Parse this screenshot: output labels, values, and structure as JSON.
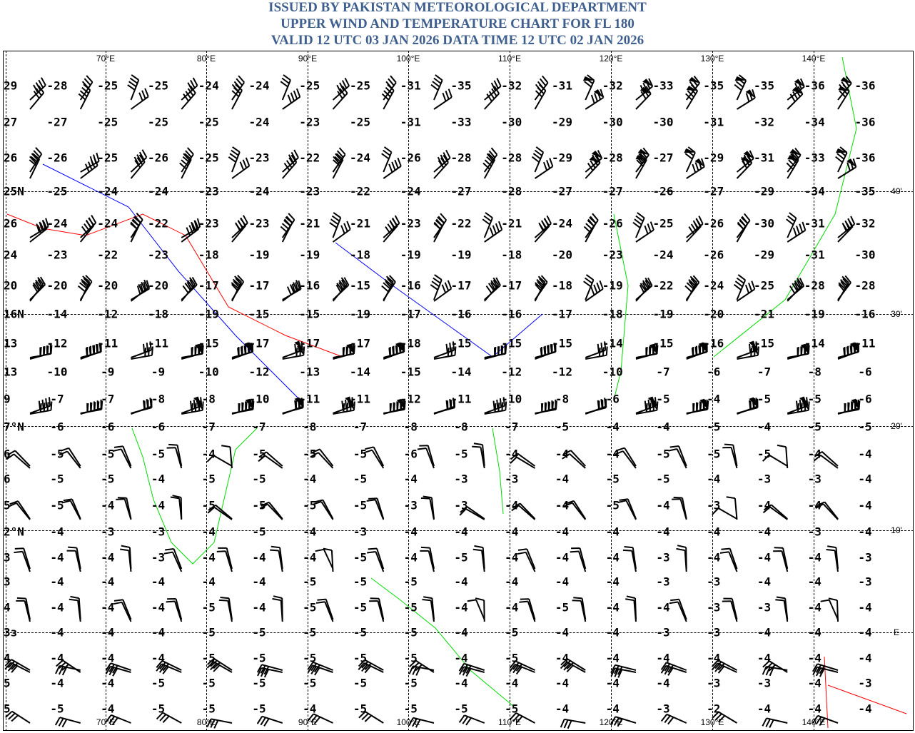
{
  "header": {
    "lines": [
      "ISSUED BY PAKISTAN METEOROLOGICAL DEPARTMENT",
      "UPPER WIND AND TEMPERATURE CHART FOR FL 180",
      "VALID 12 UTC 03 JAN 2026 DATA TIME 12 UTC 02 JAN 2026"
    ],
    "color": "#3f5f8f"
  },
  "map": {
    "longitude_labels": [
      "70°E",
      "80°E",
      "90°E",
      "100°E",
      "110°E",
      "120°E",
      "130°E",
      "140°E"
    ],
    "right_labels": [
      "40'",
      "30'",
      "20'",
      "10'",
      "E"
    ],
    "colors": {
      "coast": "#00dd00",
      "isotherm_red": "#ff0000",
      "isotherm_blue": "#0000ff",
      "barb": "#000000"
    },
    "temperature_rows": [
      [
        "29",
        "-28",
        "-25",
        "-25",
        "-24",
        "-24",
        "-25",
        "-25",
        "-31",
        "-35",
        "-32",
        "-31",
        "-32",
        "-33",
        "-35",
        "-35",
        "-36",
        "-36"
      ],
      [
        "27",
        "-27",
        "-25",
        "-25",
        "-25",
        "-24",
        "-23",
        "-25",
        "-31",
        "-33",
        "-30",
        "-29",
        "-30",
        "-30",
        "-31",
        "-32",
        "-34",
        "-36"
      ],
      [
        "26",
        "-26",
        "-25",
        "-26",
        "-25",
        "-23",
        "-22",
        "-24",
        "-26",
        "-28",
        "-28",
        "-29",
        "-28",
        "-27",
        "-29",
        "-31",
        "-33",
        "-36"
      ],
      [
        "25N",
        "-25",
        "-24",
        "-24",
        "-23",
        "-24",
        "-23",
        "-22",
        "-24",
        "-27",
        "-28",
        "-27",
        "-27",
        "-26",
        "-27",
        "-29",
        "-34",
        "-35"
      ],
      [
        "26",
        "-24",
        "-24",
        "-22",
        "-23",
        "-23",
        "-21",
        "-21",
        "-23",
        "-22",
        "-21",
        "-24",
        "-26",
        "-25",
        "-26",
        "-30",
        "-31",
        "-32"
      ],
      [
        "24",
        "-23",
        "-22",
        "-23",
        "-18",
        "-19",
        "-19",
        "-18",
        "-19",
        "-19",
        "-18",
        "-20",
        "-23",
        "-24",
        "-26",
        "-29",
        "-31",
        "-30"
      ],
      [
        "20",
        "-20",
        "-20",
        "-20",
        "-17",
        "-17",
        "-16",
        "-15",
        "-16",
        "-17",
        "-17",
        "-18",
        "-19",
        "-22",
        "-24",
        "-25",
        "-28",
        "-28"
      ],
      [
        "16N",
        "-14",
        "-12",
        "-18",
        "-19",
        "-15",
        "-15",
        "-19",
        "-17",
        "-16",
        "-16",
        "-17",
        "-18",
        "-19",
        "-20",
        "-21",
        "-19",
        "-16"
      ],
      [
        "13",
        "-12",
        "-11",
        "-11",
        "-15",
        "-17",
        "-17",
        "-17",
        "-18",
        "-15",
        "-15",
        "-15",
        "-14",
        "-15",
        "-16",
        "-15",
        "-14",
        "-11"
      ],
      [
        "13",
        "-10",
        "-9",
        "-9",
        "-10",
        "-12",
        "-13",
        "-14",
        "-15",
        "-14",
        "-12",
        "-12",
        "-10",
        "-7",
        "-6",
        "-7",
        "-8",
        "-6"
      ],
      [
        "9",
        "-7",
        "-7",
        "-8",
        "-8",
        "-10",
        "-11",
        "-11",
        "-12",
        "-11",
        "-10",
        "-8",
        "-6",
        "-5",
        "-4",
        "-5",
        "-5",
        "-6"
      ],
      [
        "7°N",
        "-6",
        "-6",
        "-6",
        "-7",
        "-7",
        "-8",
        "-7",
        "-8",
        "-8",
        "-7",
        "-5",
        "-4",
        "-4",
        "-5",
        "-4",
        "-5",
        "-5"
      ],
      [
        "6",
        "-5",
        "-5",
        "-5",
        "-4",
        "-5",
        "-5",
        "-5",
        "-6",
        "-5",
        "-4",
        "-4",
        "-4",
        "-5",
        "-5",
        "-5",
        "-4",
        "-4"
      ],
      [
        "6",
        "-5",
        "-5",
        "-4",
        "-5",
        "-5",
        "-4",
        "-5",
        "-4",
        "-3",
        "-3",
        "-4",
        "-5",
        "-5",
        "-4",
        "-3",
        "-3",
        "-4"
      ],
      [
        "5",
        "-5",
        "-4",
        "-4",
        "-5",
        "-5",
        "-5",
        "-5",
        "-3",
        "-3",
        "-4",
        "-4",
        "-5",
        "-4",
        "-3",
        "-4",
        "-4",
        "-4"
      ],
      [
        "2°N",
        "-4",
        "-3",
        "-3",
        "-4",
        "-5",
        "-4",
        "-3",
        "-4",
        "-4",
        "-4",
        "-4",
        "-4",
        "-4",
        "-4",
        "-4",
        "-3",
        "-4"
      ],
      [
        "3",
        "-4",
        "-4",
        "-3",
        "-4",
        "-4",
        "-4",
        "-5",
        "-4",
        "-5",
        "-4",
        "-4",
        "-4",
        "-3",
        "-4",
        "-4",
        "-4",
        "-3"
      ],
      [
        "3",
        "-4",
        "-4",
        "-4",
        "-4",
        "-4",
        "-5",
        "-5",
        "-5",
        "-4",
        "-4",
        "-4",
        "-4",
        "-3",
        "-3",
        "-4",
        "-4",
        "-3"
      ],
      [
        "4",
        "-4",
        "-4",
        "-4",
        "-5",
        "-4",
        "-5",
        "-5",
        "-5",
        "-4",
        "-4",
        "-5",
        "-4",
        "-4",
        "-3",
        "-3",
        "-4",
        "-4"
      ],
      [
        "3з",
        "-4",
        "-4",
        "-4",
        "-5",
        "-5",
        "-5",
        "-5",
        "-5",
        "-4",
        "-5",
        "-4",
        "-4",
        "-3",
        "-3",
        "-4",
        "-4",
        "-4"
      ],
      [
        "4",
        "-4",
        "-4",
        "-4",
        "-5",
        "-5",
        "-5",
        "-5",
        "-5",
        "-4",
        "-5",
        "-4",
        "-4",
        "-4",
        "-4",
        "-4",
        "-4",
        "-4"
      ],
      [
        "5",
        "-4",
        "-4",
        "-5",
        "-5",
        "-5",
        "-5",
        "-5",
        "-5",
        "-4",
        "-4",
        "-4",
        "-4",
        "-4",
        "-3",
        "-3",
        "-4",
        "-3"
      ],
      [
        "5",
        "-5",
        "-4",
        "-5",
        "-5",
        "-5",
        "-4",
        "-5",
        "-5",
        "-5",
        "-5",
        "-4",
        "-4",
        "-3",
        "-2",
        "-4",
        "-4",
        "-4"
      ]
    ]
  }
}
